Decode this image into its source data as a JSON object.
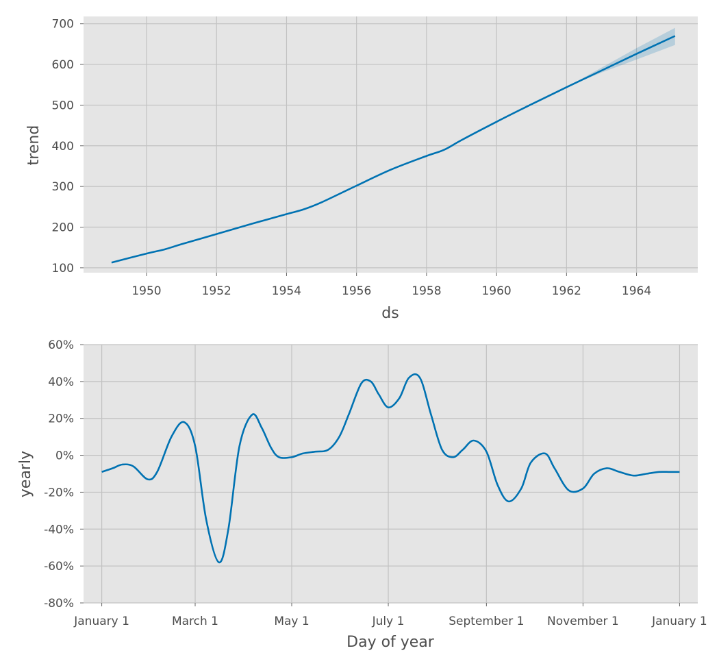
{
  "colors": {
    "background": "#ffffff",
    "plot_background": "#e5e5e5",
    "grid": "#c2c2c2",
    "line": "#0072b2",
    "band": "#0072b2",
    "text": "#4d4d4d"
  },
  "chart_data": [
    {
      "type": "line",
      "title": "",
      "xlabel": "ds",
      "ylabel": "trend",
      "grid": true,
      "xlim": [
        1948.2,
        1965.75
      ],
      "ylim": [
        88,
        718
      ],
      "x_ticks": [
        1950,
        1952,
        1954,
        1956,
        1958,
        1960,
        1962,
        1964
      ],
      "y_ticks": [
        100,
        200,
        300,
        400,
        500,
        600,
        700
      ],
      "x_tick_labels": [
        "1950",
        "1952",
        "1954",
        "1956",
        "1958",
        "1960",
        "1962",
        "1964"
      ],
      "y_tick_labels": [
        "100",
        "200",
        "300",
        "400",
        "500",
        "600",
        "700"
      ],
      "series": [
        {
          "x": [
            1949.0,
            1950.0,
            1950.5,
            1951.0,
            1952.0,
            1953.0,
            1954.0,
            1954.5,
            1955.0,
            1956.0,
            1957.0,
            1958.0,
            1958.5,
            1959.0,
            1960.0,
            1961.0,
            1962.0,
            1963.0,
            1964.0,
            1965.1
          ],
          "values": [
            113,
            135,
            145,
            158,
            183,
            208,
            232,
            244,
            261,
            302,
            342,
            375,
            390,
            414,
            459,
            502,
            544,
            585,
            626,
            670
          ],
          "upper": [
            113,
            135,
            145,
            158,
            183,
            208,
            232,
            244,
            261,
            302,
            342,
            375,
            390,
            414,
            459,
            502,
            544,
            592,
            640,
            690
          ],
          "lower": [
            113,
            135,
            145,
            158,
            183,
            208,
            232,
            244,
            261,
            302,
            342,
            375,
            390,
            414,
            459,
            502,
            544,
            580,
            612,
            648
          ]
        }
      ]
    },
    {
      "type": "line",
      "title": "",
      "xlabel": "Day of year",
      "ylabel": "yearly",
      "grid": true,
      "x_unit": "day of year",
      "xlim": [
        -11.5,
        376.5
      ],
      "ylim": [
        -80,
        60
      ],
      "x_ticks": [
        0,
        59,
        120,
        181,
        243,
        304,
        365
      ],
      "x_tick_labels": [
        "January 1",
        "March 1",
        "May 1",
        "July 1",
        "September 1",
        "November 1",
        "January 1"
      ],
      "y_ticks": [
        -80,
        -60,
        -40,
        -20,
        0,
        20,
        40,
        60
      ],
      "y_tick_labels": [
        "-80%",
        "-60%",
        "-40%",
        "-20%",
        "0%",
        "20%",
        "40%",
        "60%"
      ],
      "series": [
        {
          "x": [
            0,
            7,
            13,
            20,
            29,
            35,
            44,
            52,
            59,
            66,
            74,
            80,
            87,
            95,
            101,
            107,
            112,
            120,
            127,
            135,
            143,
            150,
            156,
            164,
            170,
            175,
            181,
            188,
            194,
            201,
            208,
            215,
            222,
            228,
            235,
            243,
            250,
            257,
            265,
            271,
            280,
            286,
            295,
            304,
            311,
            319,
            327,
            336,
            344,
            352,
            359,
            365
          ],
          "values": [
            -9,
            -7,
            -5,
            -6,
            -13,
            -9,
            10,
            18,
            5,
            -35,
            -58,
            -40,
            5,
            22,
            15,
            4,
            -1,
            -1,
            1,
            2,
            3,
            10,
            22,
            39,
            40,
            33,
            26,
            31,
            42,
            42,
            22,
            3,
            -1,
            3,
            8,
            2,
            -16,
            -25,
            -18,
            -4,
            1,
            -7,
            -19,
            -18,
            -10,
            -7,
            -9,
            -11,
            -10,
            -9,
            -9,
            -9
          ]
        }
      ]
    }
  ]
}
